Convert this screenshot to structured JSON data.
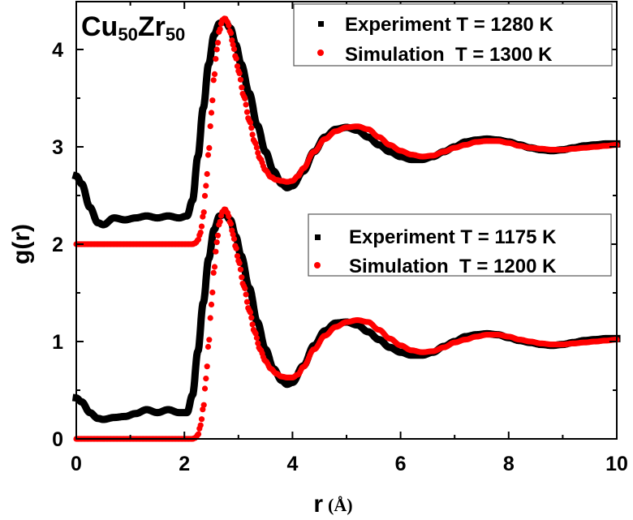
{
  "chart_data": {
    "type": "scatter",
    "title": "Cu50Zr50",
    "title_parts": {
      "el1": "Cu",
      "sub1": "50",
      "el2": "Zr",
      "sub2": "50"
    },
    "xlabel": "r",
    "xlabel_unit": "(Å)",
    "ylabel": "g(r)",
    "xlim": [
      0,
      10
    ],
    "ylim": [
      0,
      4.4
    ],
    "x_ticks": [
      "0",
      "2",
      "4",
      "6",
      "8",
      "10"
    ],
    "y_ticks": [
      "0",
      "1",
      "2",
      "3",
      "4"
    ],
    "grid": false,
    "legends": [
      {
        "position": "top-right",
        "entries": [
          {
            "label": "Experiment T = 1280 K",
            "marker": "square",
            "color": "#000000"
          },
          {
            "label": "Simulation  T = 1300 K",
            "marker": "circle",
            "color": "#ff0000"
          }
        ]
      },
      {
        "position": "middle-right",
        "entries": [
          {
            "label": "Experiment T = 1175 K",
            "marker": "square",
            "color": "#000000"
          },
          {
            "label": "Simulation  T = 1200 K",
            "marker": "circle",
            "color": "#ff0000"
          }
        ]
      }
    ],
    "series": [
      {
        "name": "Experiment T = 1280 K",
        "color": "#000000",
        "offset": 2,
        "x": [
          0.0,
          0.1,
          0.25,
          0.4,
          0.5,
          0.7,
          0.9,
          1.1,
          1.3,
          1.5,
          1.7,
          1.9,
          2.05,
          2.15,
          2.25,
          2.35,
          2.45,
          2.55,
          2.65,
          2.75,
          2.85,
          2.95,
          3.05,
          3.2,
          3.35,
          3.5,
          3.65,
          3.8,
          3.9,
          4.0,
          4.2,
          4.4,
          4.6,
          4.8,
          5.0,
          5.2,
          5.4,
          5.6,
          5.8,
          6.0,
          6.2,
          6.4,
          6.6,
          6.8,
          7.0,
          7.2,
          7.4,
          7.6,
          7.8,
          8.0,
          8.2,
          8.4,
          8.6,
          8.8,
          9.0,
          9.2,
          9.4,
          9.6,
          9.8,
          10.0
        ],
        "y": [
          2.7,
          2.62,
          2.38,
          2.22,
          2.2,
          2.27,
          2.25,
          2.27,
          2.29,
          2.27,
          2.29,
          2.27,
          2.29,
          2.45,
          2.9,
          3.4,
          3.85,
          4.15,
          4.27,
          4.29,
          4.22,
          4.05,
          3.85,
          3.55,
          3.22,
          2.95,
          2.75,
          2.62,
          2.58,
          2.6,
          2.75,
          2.95,
          3.1,
          3.18,
          3.2,
          3.17,
          3.1,
          3.02,
          2.95,
          2.9,
          2.87,
          2.87,
          2.9,
          2.95,
          3.0,
          3.05,
          3.07,
          3.08,
          3.07,
          3.05,
          3.02,
          2.99,
          2.97,
          2.96,
          2.97,
          2.99,
          3.01,
          3.02,
          3.03,
          3.03
        ]
      },
      {
        "name": "Simulation  T = 1300 K",
        "color": "#ff0000",
        "offset": 2,
        "x": [
          0.0,
          0.5,
          1.0,
          1.5,
          2.0,
          2.15,
          2.2,
          2.25,
          2.3,
          2.35,
          2.4,
          2.45,
          2.5,
          2.55,
          2.6,
          2.65,
          2.7,
          2.75,
          2.8,
          2.85,
          2.9,
          2.95,
          3.0,
          3.1,
          3.2,
          3.3,
          3.4,
          3.5,
          3.6,
          3.7,
          3.8,
          3.9,
          4.0,
          4.1,
          4.2,
          4.4,
          4.6,
          4.8,
          5.0,
          5.2,
          5.4,
          5.6,
          5.8,
          6.0,
          6.2,
          6.4,
          6.6,
          6.8,
          7.0,
          7.2,
          7.4,
          7.6,
          7.8,
          8.0,
          8.2,
          8.4,
          8.6,
          8.8,
          9.0,
          9.2,
          9.4,
          9.6,
          9.8,
          10.0
        ],
        "y": [
          2.0,
          2.0,
          2.0,
          2.0,
          2.0,
          2.0,
          2.01,
          2.04,
          2.12,
          2.3,
          2.6,
          2.95,
          3.35,
          3.72,
          4.0,
          4.2,
          4.3,
          4.32,
          4.28,
          4.18,
          4.05,
          3.92,
          3.78,
          3.52,
          3.27,
          3.05,
          2.88,
          2.76,
          2.69,
          2.66,
          2.65,
          2.64,
          2.65,
          2.7,
          2.78,
          2.95,
          3.08,
          3.16,
          3.2,
          3.21,
          3.18,
          3.1,
          3.02,
          2.96,
          2.92,
          2.9,
          2.91,
          2.95,
          2.99,
          3.02,
          3.05,
          3.06,
          3.06,
          3.04,
          3.01,
          2.99,
          2.98,
          2.97,
          2.97,
          2.98,
          2.99,
          3.0,
          3.01,
          3.02
        ]
      },
      {
        "name": "Experiment T = 1175 K",
        "color": "#000000",
        "offset": 0,
        "x": [
          0.0,
          0.1,
          0.25,
          0.4,
          0.5,
          0.7,
          0.9,
          1.1,
          1.3,
          1.5,
          1.7,
          1.9,
          2.05,
          2.15,
          2.25,
          2.35,
          2.45,
          2.55,
          2.65,
          2.75,
          2.85,
          2.95,
          3.05,
          3.2,
          3.35,
          3.5,
          3.65,
          3.8,
          3.9,
          4.0,
          4.2,
          4.4,
          4.6,
          4.8,
          5.0,
          5.2,
          5.4,
          5.6,
          5.8,
          6.0,
          6.2,
          6.4,
          6.6,
          6.8,
          7.0,
          7.2,
          7.4,
          7.6,
          7.8,
          8.0,
          8.2,
          8.4,
          8.6,
          8.8,
          9.0,
          9.2,
          9.4,
          9.6,
          9.8,
          10.0
        ],
        "y": [
          0.42,
          0.38,
          0.27,
          0.21,
          0.2,
          0.22,
          0.23,
          0.26,
          0.3,
          0.27,
          0.3,
          0.27,
          0.27,
          0.45,
          0.9,
          1.4,
          1.85,
          2.15,
          2.29,
          2.31,
          2.25,
          2.08,
          1.88,
          1.55,
          1.2,
          0.92,
          0.72,
          0.6,
          0.56,
          0.58,
          0.75,
          0.96,
          1.11,
          1.19,
          1.2,
          1.17,
          1.1,
          1.02,
          0.94,
          0.89,
          0.86,
          0.86,
          0.89,
          0.95,
          1.0,
          1.05,
          1.07,
          1.08,
          1.07,
          1.04,
          1.01,
          0.99,
          0.97,
          0.96,
          0.97,
          0.99,
          1.01,
          1.02,
          1.03,
          1.03
        ]
      },
      {
        "name": "Simulation  T = 1200 K",
        "color": "#ff0000",
        "offset": 0,
        "x": [
          0.0,
          0.5,
          1.0,
          1.5,
          2.0,
          2.15,
          2.2,
          2.25,
          2.3,
          2.35,
          2.4,
          2.45,
          2.5,
          2.55,
          2.6,
          2.65,
          2.7,
          2.75,
          2.8,
          2.85,
          2.9,
          2.95,
          3.0,
          3.1,
          3.2,
          3.3,
          3.4,
          3.5,
          3.6,
          3.7,
          3.8,
          3.9,
          4.0,
          4.1,
          4.2,
          4.4,
          4.6,
          4.8,
          5.0,
          5.2,
          5.4,
          5.6,
          5.8,
          6.0,
          6.2,
          6.4,
          6.6,
          6.8,
          7.0,
          7.2,
          7.4,
          7.6,
          7.8,
          8.0,
          8.2,
          8.4,
          8.6,
          8.8,
          9.0,
          9.2,
          9.4,
          9.6,
          9.8,
          10.0
        ],
        "y": [
          0.0,
          0.0,
          0.0,
          0.0,
          0.0,
          0.0,
          0.01,
          0.04,
          0.14,
          0.32,
          0.62,
          0.98,
          1.38,
          1.74,
          2.02,
          2.22,
          2.33,
          2.36,
          2.32,
          2.22,
          2.1,
          1.97,
          1.83,
          1.57,
          1.32,
          1.1,
          0.92,
          0.8,
          0.72,
          0.67,
          0.64,
          0.63,
          0.63,
          0.66,
          0.74,
          0.92,
          1.06,
          1.15,
          1.2,
          1.22,
          1.2,
          1.12,
          1.03,
          0.96,
          0.91,
          0.89,
          0.9,
          0.94,
          0.99,
          1.02,
          1.05,
          1.07,
          1.07,
          1.05,
          1.02,
          1.0,
          0.98,
          0.97,
          0.97,
          0.98,
          0.99,
          1.0,
          1.01,
          1.02
        ]
      }
    ]
  }
}
